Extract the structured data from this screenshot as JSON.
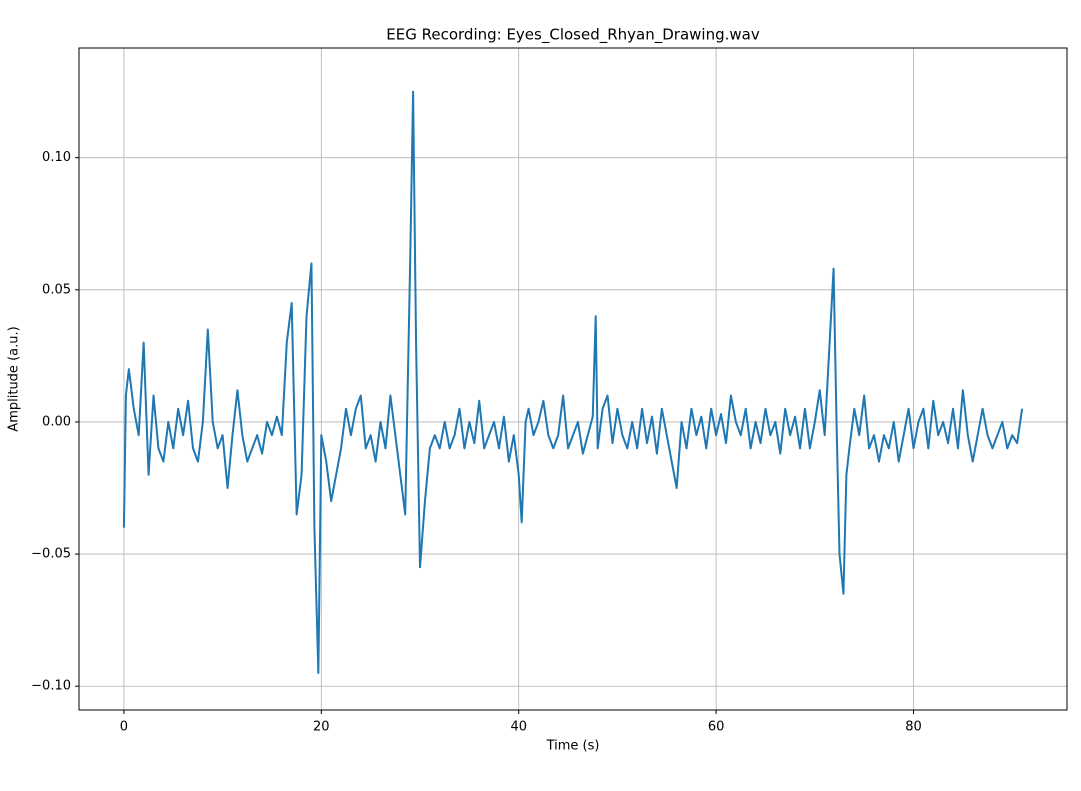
{
  "chart_data": {
    "type": "line",
    "title": "EEG Recording: Eyes_Closed_Rhyan_Drawing.wav",
    "x_label": "Time (s)",
    "y_label": "Amplitude (a.u.)",
    "color": "#1f77b4",
    "grid": true,
    "xlim": [
      -4.55,
      95.55
    ],
    "ylim": [
      -0.109,
      0.1415
    ],
    "xticks": [
      0,
      20,
      40,
      60,
      80
    ],
    "yticks": [
      {
        "value": -0.1,
        "label": "−0.10"
      },
      {
        "value": -0.05,
        "label": "−0.05"
      },
      {
        "value": 0,
        "label": "0.00"
      },
      {
        "value": 0.05,
        "label": "0.05"
      },
      {
        "value": 0.1,
        "label": "0.10"
      }
    ],
    "x": [
      0,
      0.2,
      0.5,
      1,
      1.5,
      2,
      2.5,
      3,
      3.5,
      4,
      4.5,
      5,
      5.5,
      6,
      6.5,
      7,
      7.5,
      8,
      8.5,
      9,
      9.5,
      10,
      10.5,
      11,
      11.5,
      12,
      12.5,
      13,
      13.5,
      14,
      14.5,
      15,
      15.5,
      16,
      16.5,
      17,
      17.5,
      18,
      18.5,
      19,
      19.3,
      19.7,
      20,
      20.5,
      21,
      21.5,
      22,
      22.5,
      23,
      23.5,
      24,
      24.5,
      25,
      25.5,
      26,
      26.5,
      27,
      27.5,
      28,
      28.5,
      29,
      29.3,
      29.6,
      30,
      30.5,
      31,
      31.5,
      32,
      32.5,
      33,
      33.5,
      34,
      34.5,
      35,
      35.5,
      36,
      36.5,
      37,
      37.5,
      38,
      38.5,
      39,
      39.5,
      40,
      40.3,
      40.7,
      41,
      41.5,
      42,
      42.5,
      43,
      43.5,
      44,
      44.5,
      45,
      45.5,
      46,
      46.5,
      47,
      47.5,
      47.8,
      48,
      48.5,
      49,
      49.5,
      50,
      50.5,
      51,
      51.5,
      52,
      52.5,
      53,
      53.5,
      54,
      54.5,
      55,
      55.5,
      56,
      56.5,
      57,
      57.5,
      58,
      58.5,
      59,
      59.5,
      60,
      60.5,
      61,
      61.5,
      62,
      62.5,
      63,
      63.5,
      64,
      64.5,
      65,
      65.5,
      66,
      66.5,
      67,
      67.5,
      68,
      68.5,
      69,
      69.5,
      70,
      70.5,
      71,
      71.5,
      71.9,
      72.2,
      72.5,
      72.9,
      73.2,
      73.5,
      74,
      74.5,
      75,
      75.5,
      76,
      76.5,
      77,
      77.5,
      78,
      78.5,
      79,
      79.5,
      80,
      80.5,
      81,
      81.5,
      82,
      82.5,
      83,
      83.5,
      84,
      84.5,
      85,
      85.5,
      86,
      86.5,
      87,
      87.5,
      88,
      88.5,
      89,
      89.5,
      90,
      90.5,
      91
    ],
    "values": [
      -0.04,
      0.01,
      0.02,
      0.005,
      -0.005,
      0.03,
      -0.02,
      0.01,
      -0.01,
      -0.015,
      0,
      -0.01,
      0.005,
      -0.005,
      0.008,
      -0.01,
      -0.015,
      0,
      0.035,
      0,
      -0.01,
      -0.005,
      -0.025,
      -0.005,
      0.012,
      -0.005,
      -0.015,
      -0.01,
      -0.005,
      -0.012,
      0,
      -0.005,
      0.002,
      -0.005,
      0.03,
      0.045,
      -0.035,
      -0.02,
      0.04,
      0.06,
      -0.04,
      -0.095,
      -0.005,
      -0.015,
      -0.03,
      -0.02,
      -0.01,
      0.005,
      -0.005,
      0.005,
      0.01,
      -0.01,
      -0.005,
      -0.015,
      0,
      -0.01,
      0.01,
      -0.005,
      -0.02,
      -0.035,
      0.06,
      0.125,
      0.03,
      -0.055,
      -0.03,
      -0.01,
      -0.005,
      -0.01,
      0,
      -0.01,
      -0.005,
      0.005,
      -0.01,
      0,
      -0.008,
      0.008,
      -0.01,
      -0.005,
      0,
      -0.01,
      0.002,
      -0.015,
      -0.005,
      -0.02,
      -0.038,
      0,
      0.005,
      -0.005,
      0,
      0.008,
      -0.005,
      -0.01,
      -0.005,
      0.01,
      -0.01,
      -0.005,
      0,
      -0.012,
      -0.005,
      0.002,
      0.04,
      -0.01,
      0.005,
      0.01,
      -0.008,
      0.005,
      -0.005,
      -0.01,
      0,
      -0.01,
      0.005,
      -0.008,
      0.002,
      -0.012,
      0.005,
      -0.005,
      -0.015,
      -0.025,
      0,
      -0.01,
      0.005,
      -0.005,
      0.002,
      -0.01,
      0.005,
      -0.005,
      0.003,
      -0.008,
      0.01,
      0,
      -0.005,
      0.005,
      -0.01,
      0,
      -0.008,
      0.005,
      -0.005,
      0,
      -0.012,
      0.005,
      -0.005,
      0.002,
      -0.01,
      0.005,
      -0.01,
      0,
      0.012,
      -0.005,
      0.03,
      0.058,
      0,
      -0.05,
      -0.065,
      -0.02,
      -0.01,
      0.005,
      -0.005,
      0.01,
      -0.01,
      -0.005,
      -0.015,
      -0.005,
      -0.01,
      0,
      -0.015,
      -0.005,
      0.005,
      -0.01,
      0,
      0.005,
      -0.01,
      0.008,
      -0.005,
      0,
      -0.008,
      0.005,
      -0.01,
      0.012,
      -0.005,
      -0.015,
      -0.005,
      0.005,
      -0.005,
      -0.01,
      -0.005,
      0,
      -0.01,
      -0.005,
      -0.008,
      0.005
    ]
  }
}
